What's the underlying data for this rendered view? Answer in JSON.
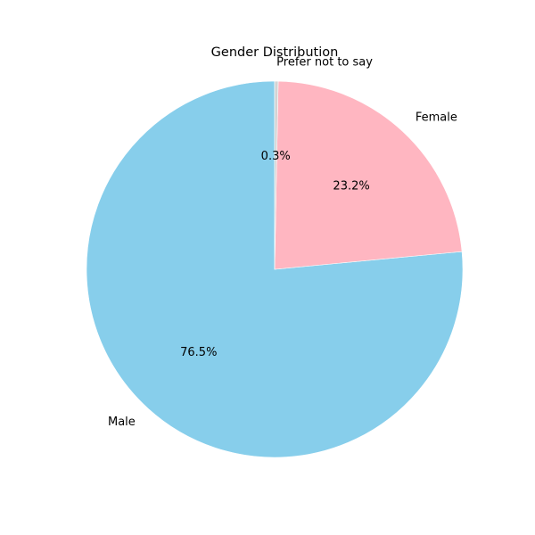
{
  "chart_data": {
    "type": "pie",
    "title": "Gender Distribution",
    "start_angle_deg": 90,
    "direction": "counterclockwise",
    "slices": [
      {
        "label": "Male",
        "value": 76.5,
        "pct_label": "76.5%",
        "color": "#87CEEB"
      },
      {
        "label": "Female",
        "value": 23.2,
        "pct_label": "23.2%",
        "color": "#FFB6C1"
      },
      {
        "label": "Prefer not to say",
        "value": 0.3,
        "pct_label": "0.3%",
        "color": "#D3D3D3"
      }
    ]
  }
}
